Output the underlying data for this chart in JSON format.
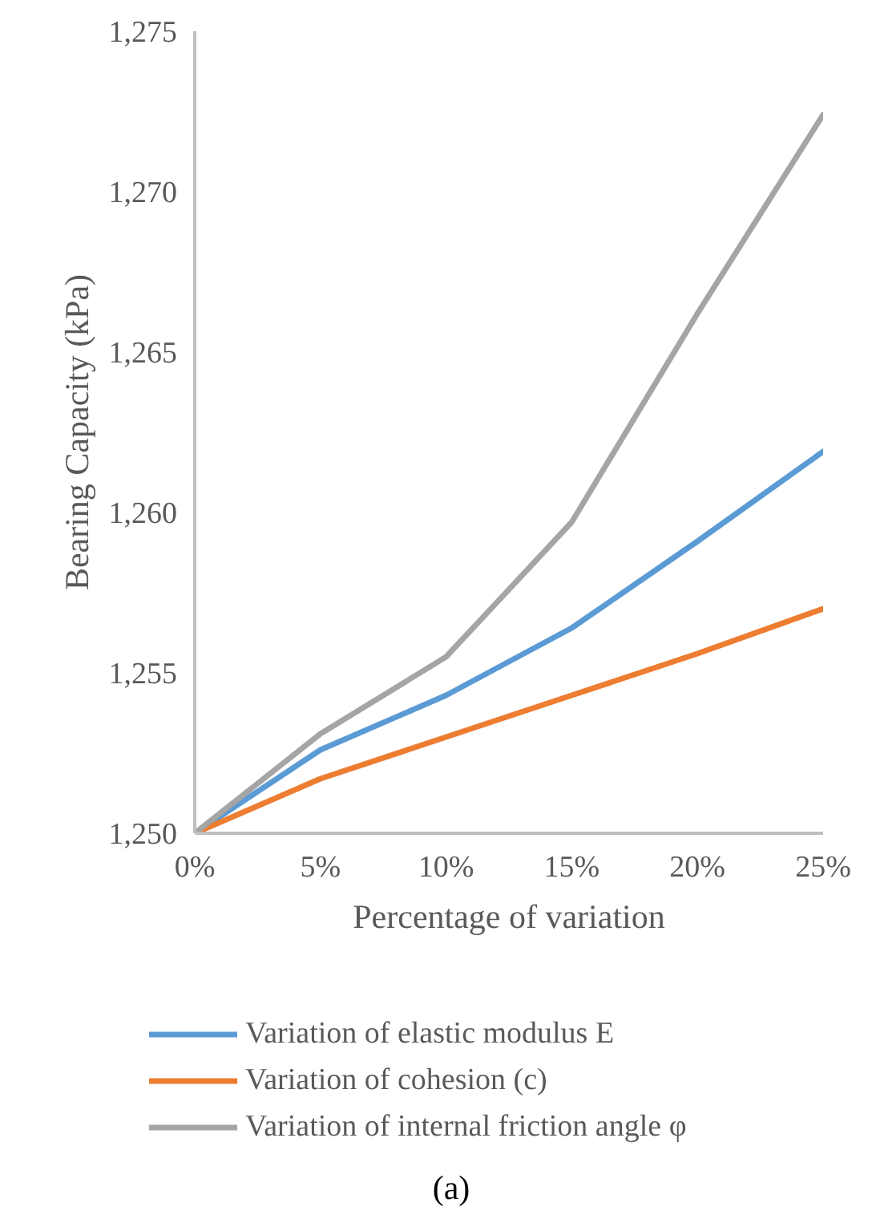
{
  "chart_data": {
    "type": "line",
    "xlabel": "Percentage of variation",
    "ylabel": "Bearing Capacity (kPa)",
    "x": [
      0,
      5,
      10,
      15,
      20,
      25
    ],
    "xlim": [
      0,
      25
    ],
    "ylim": [
      1250,
      1275
    ],
    "xticks": [
      {
        "value": 0,
        "label": "0%"
      },
      {
        "value": 5,
        "label": "5%"
      },
      {
        "value": 10,
        "label": "10%"
      },
      {
        "value": 15,
        "label": "15%"
      },
      {
        "value": 20,
        "label": "20%"
      },
      {
        "value": 25,
        "label": "25%"
      }
    ],
    "yticks": [
      {
        "value": 1250,
        "label": "1,250"
      },
      {
        "value": 1255,
        "label": "1,255"
      },
      {
        "value": 1260,
        "label": "1,260"
      },
      {
        "value": 1265,
        "label": "1,265"
      },
      {
        "value": 1270,
        "label": "1,270"
      },
      {
        "value": 1275,
        "label": "1,275"
      }
    ],
    "series": [
      {
        "name": "Variation of elastic modulus E",
        "color": "#5b9bd5",
        "values": [
          1250,
          1252.6,
          1254.3,
          1256.4,
          1259.1,
          1261.9
        ]
      },
      {
        "name": "Variation of cohesion (c)",
        "color": "#ed7d31",
        "values": [
          1250,
          1251.7,
          1253.0,
          1254.3,
          1255.6,
          1257.0
        ]
      },
      {
        "name": "Variation of internal friction angle φ",
        "color": "#a5a5a5",
        "values": [
          1250,
          1253.1,
          1255.5,
          1259.7,
          1266.2,
          1272.4
        ]
      }
    ],
    "grid": false,
    "legend": "bottom",
    "line_style": "solid",
    "marker": "none",
    "annotations": [
      "(a)"
    ]
  }
}
